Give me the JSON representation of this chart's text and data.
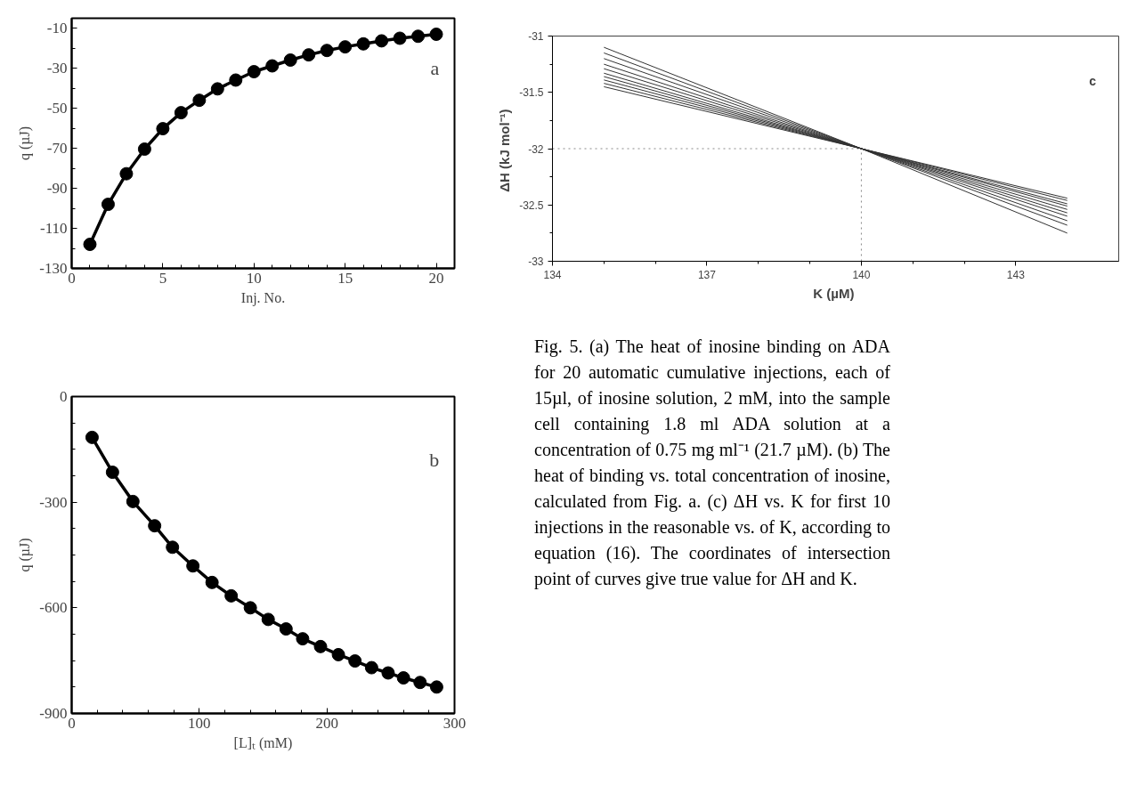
{
  "chart_data": [
    {
      "type": "line",
      "xlabel": "Inj. No.",
      "ylabel": "q (µJ)",
      "annotations": [
        "a"
      ],
      "marker": "circle",
      "line_style": "solid",
      "grid": false,
      "x": [
        1,
        2,
        3,
        4,
        5,
        6,
        7,
        8,
        9,
        10,
        11,
        12,
        13,
        14,
        15,
        16,
        17,
        18,
        19,
        20
      ],
      "series": [
        {
          "color": "#000000",
          "values": [
            -118,
            -98,
            -82.7,
            -70.4,
            -60.2,
            -52.2,
            -46,
            -40.3,
            -35.9,
            -31.7,
            -28.8,
            -25.9,
            -23.3,
            -21.1,
            -19.3,
            -17.8,
            -16.3,
            -15,
            -14,
            -13
          ]
        }
      ],
      "xlim": [
        0,
        21
      ],
      "xticks": [
        0,
        5,
        10,
        15,
        20
      ],
      "ylim": [
        -130,
        -5
      ],
      "yticks": [
        -130,
        -110,
        -90,
        -70,
        -50,
        -30,
        -10
      ]
    },
    {
      "type": "line",
      "xlabel": "[L]ₜ (mM)",
      "ylabel": "q (µJ)",
      "annotations": [
        "b"
      ],
      "marker": "circle",
      "line_style": "solid",
      "grid": false,
      "x": [
        16,
        32,
        48,
        65,
        79,
        95,
        110,
        125,
        140,
        154,
        168,
        181,
        195,
        209,
        222,
        235,
        248,
        260,
        273,
        286
      ],
      "series": [
        {
          "color": "#000000",
          "values": [
            -116,
            -215,
            -298,
            -367,
            -428,
            -481,
            -528,
            -566,
            -600,
            -633,
            -660,
            -688,
            -710,
            -733,
            -751,
            -770,
            -785,
            -799,
            -812,
            -825
          ]
        }
      ],
      "xlim": [
        0,
        300
      ],
      "xticks": [
        0,
        100,
        200,
        300
      ],
      "ylim": [
        -900,
        0
      ],
      "yticks": [
        -900,
        -600,
        -300,
        0
      ]
    },
    {
      "type": "line",
      "xlabel": "K  (µM)",
      "ylabel": "ΔH  (kJ mol⁻¹)",
      "marker": "none",
      "line_style": "solid",
      "grid": false,
      "annotations": [
        "c",
        "Fig. 5. (a) The heat of inosine binding on ADA for 20 automatic cumulative injections, each of 15µl, of inosine solution, 2 mM, into the sample cell containing 1.8 ml ADA solution at a concentration of 0.75 mg ml⁻¹ (21.7 µM). (b) The heat of binding vs. total concentration of inosine, calculated from Fig. a. (c) ΔH vs. K for first 10 injections in the reasonable vs. of K, according to equation (16). The coordinates of intersection point of curves give true value for ΔH and K."
      ],
      "x": [
        135,
        140,
        144
      ],
      "series": [
        {
          "color": "#333333",
          "values": [
            -31.1,
            -32,
            -32.75
          ]
        },
        {
          "color": "#333333",
          "values": [
            -31.15,
            -32,
            -32.68
          ]
        },
        {
          "color": "#333333",
          "values": [
            -31.2,
            -32,
            -32.64
          ]
        },
        {
          "color": "#333333",
          "values": [
            -31.25,
            -32,
            -32.6
          ]
        },
        {
          "color": "#333333",
          "values": [
            -31.29,
            -32,
            -32.57
          ]
        },
        {
          "color": "#333333",
          "values": [
            -31.33,
            -32,
            -32.54
          ]
        },
        {
          "color": "#333333",
          "values": [
            -31.36,
            -32,
            -32.51
          ]
        },
        {
          "color": "#333333",
          "values": [
            -31.39,
            -32,
            -32.49
          ]
        },
        {
          "color": "#333333",
          "values": [
            -31.42,
            -32,
            -32.46
          ]
        },
        {
          "color": "#333333",
          "values": [
            -31.45,
            -32,
            -32.44
          ]
        }
      ],
      "ref_lines": [
        {
          "axis": "y",
          "value": -32,
          "label": null,
          "color": "#888888",
          "line_style": "dotted"
        },
        {
          "axis": "x",
          "value": 140,
          "label": null,
          "color": "#888888",
          "line_style": "dotted"
        }
      ],
      "xlim": [
        134,
        145
      ],
      "xticks": [
        134,
        137,
        140,
        143
      ],
      "ylim": [
        -33,
        -31
      ],
      "yticks": [
        -33,
        -32.5,
        -32,
        -31.5,
        -31
      ]
    }
  ]
}
